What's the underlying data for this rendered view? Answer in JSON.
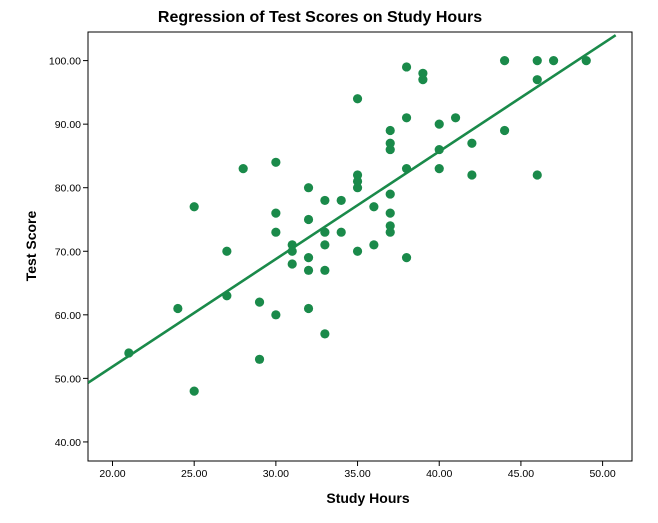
{
  "chart_data": {
    "type": "scatter",
    "title": "Regression of Test Scores on Study Hours",
    "xlabel": "Study Hours",
    "ylabel": "Test Score",
    "xlim": [
      18.5,
      51.8
    ],
    "ylim": [
      37.0,
      104.5
    ],
    "x_ticks": [
      20,
      25,
      30,
      35,
      40,
      45,
      50
    ],
    "x_tick_labels": [
      "20.00",
      "25.00",
      "30.00",
      "35.00",
      "40.00",
      "45.00",
      "50.00"
    ],
    "y_ticks": [
      40,
      50,
      60,
      70,
      80,
      90,
      100
    ],
    "y_tick_labels": [
      "40.00",
      "50.00",
      "60.00",
      "70.00",
      "80.00",
      "90.00",
      "100.00"
    ],
    "grid": false,
    "legend": "none",
    "marker_color": "#1a8a4a",
    "line_color": "#1a8a4a",
    "points": [
      {
        "x": 21,
        "y": 54
      },
      {
        "x": 24,
        "y": 61
      },
      {
        "x": 25,
        "y": 77
      },
      {
        "x": 25,
        "y": 48
      },
      {
        "x": 27,
        "y": 70
      },
      {
        "x": 27,
        "y": 63
      },
      {
        "x": 28,
        "y": 83
      },
      {
        "x": 29,
        "y": 62
      },
      {
        "x": 29,
        "y": 53
      },
      {
        "x": 30,
        "y": 84
      },
      {
        "x": 30,
        "y": 76
      },
      {
        "x": 30,
        "y": 73
      },
      {
        "x": 30,
        "y": 60
      },
      {
        "x": 31,
        "y": 71
      },
      {
        "x": 31,
        "y": 70
      },
      {
        "x": 31,
        "y": 68
      },
      {
        "x": 32,
        "y": 80
      },
      {
        "x": 32,
        "y": 75
      },
      {
        "x": 32,
        "y": 69
      },
      {
        "x": 32,
        "y": 67
      },
      {
        "x": 32,
        "y": 61
      },
      {
        "x": 33,
        "y": 78
      },
      {
        "x": 33,
        "y": 73
      },
      {
        "x": 33,
        "y": 71
      },
      {
        "x": 33,
        "y": 67
      },
      {
        "x": 33,
        "y": 57
      },
      {
        "x": 34,
        "y": 78
      },
      {
        "x": 34,
        "y": 73
      },
      {
        "x": 35,
        "y": 94
      },
      {
        "x": 35,
        "y": 82
      },
      {
        "x": 35,
        "y": 81
      },
      {
        "x": 35,
        "y": 80
      },
      {
        "x": 35,
        "y": 70
      },
      {
        "x": 36,
        "y": 77
      },
      {
        "x": 36,
        "y": 71
      },
      {
        "x": 37,
        "y": 89
      },
      {
        "x": 37,
        "y": 87
      },
      {
        "x": 37,
        "y": 86
      },
      {
        "x": 37,
        "y": 79
      },
      {
        "x": 37,
        "y": 76
      },
      {
        "x": 37,
        "y": 74
      },
      {
        "x": 37,
        "y": 73
      },
      {
        "x": 38,
        "y": 99
      },
      {
        "x": 38,
        "y": 91
      },
      {
        "x": 38,
        "y": 83
      },
      {
        "x": 38,
        "y": 69
      },
      {
        "x": 39,
        "y": 98
      },
      {
        "x": 39,
        "y": 97
      },
      {
        "x": 40,
        "y": 90
      },
      {
        "x": 40,
        "y": 86
      },
      {
        "x": 40,
        "y": 83
      },
      {
        "x": 41,
        "y": 91
      },
      {
        "x": 42,
        "y": 87
      },
      {
        "x": 42,
        "y": 82
      },
      {
        "x": 44,
        "y": 100
      },
      {
        "x": 44,
        "y": 89
      },
      {
        "x": 46,
        "y": 100
      },
      {
        "x": 46,
        "y": 97
      },
      {
        "x": 46,
        "y": 82
      },
      {
        "x": 47,
        "y": 100
      },
      {
        "x": 49,
        "y": 100
      }
    ],
    "regression_line": {
      "x": [
        18.5,
        50.8
      ],
      "y": [
        49.3,
        104.0
      ]
    }
  }
}
